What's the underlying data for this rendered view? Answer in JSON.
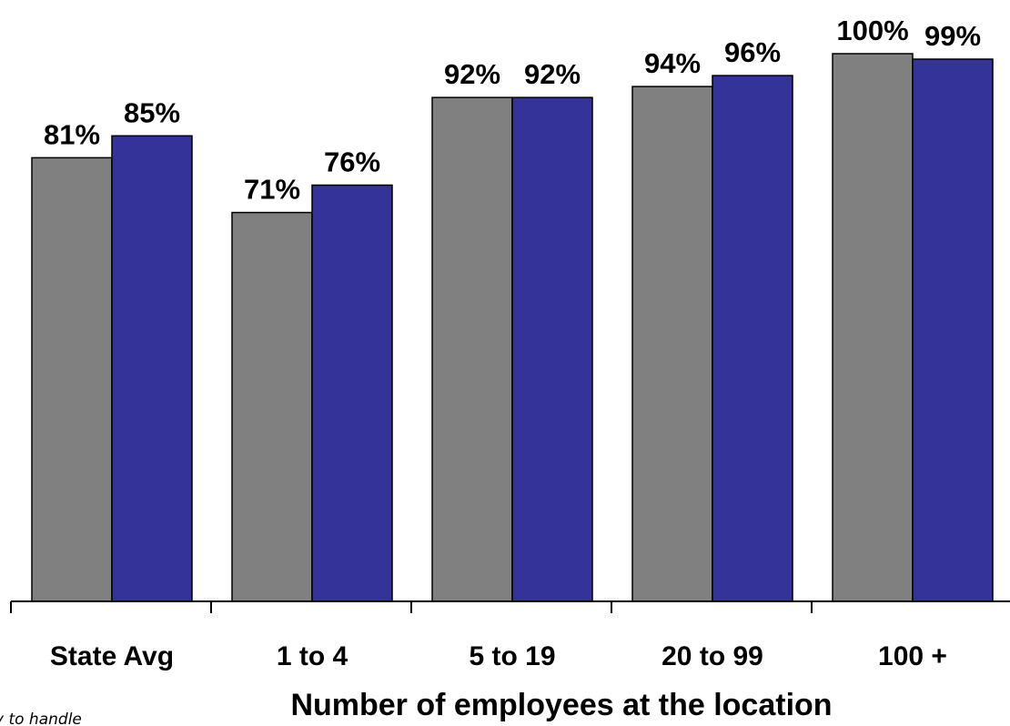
{
  "chart_data": {
    "type": "bar",
    "categories": [
      "State Avg",
      "1 to 4",
      "5 to 19",
      "20 to 99",
      "100 +"
    ],
    "series": [
      {
        "values": [
          81,
          71,
          92,
          94,
          100
        ],
        "color": "#808080"
      },
      {
        "values": [
          85,
          76,
          92,
          96,
          99
        ],
        "color": "#333399"
      }
    ],
    "data_labels": [
      [
        "81%",
        "71%",
        "92%",
        "94%",
        "100%"
      ],
      [
        "85%",
        "76%",
        "92%",
        "96%",
        "99%"
      ]
    ],
    "title": "",
    "xlabel": "Number of employees at the location",
    "ylabel": "",
    "ylim": [
      0,
      100
    ],
    "grid": false,
    "legend": "none",
    "footnote": "y to handle"
  }
}
